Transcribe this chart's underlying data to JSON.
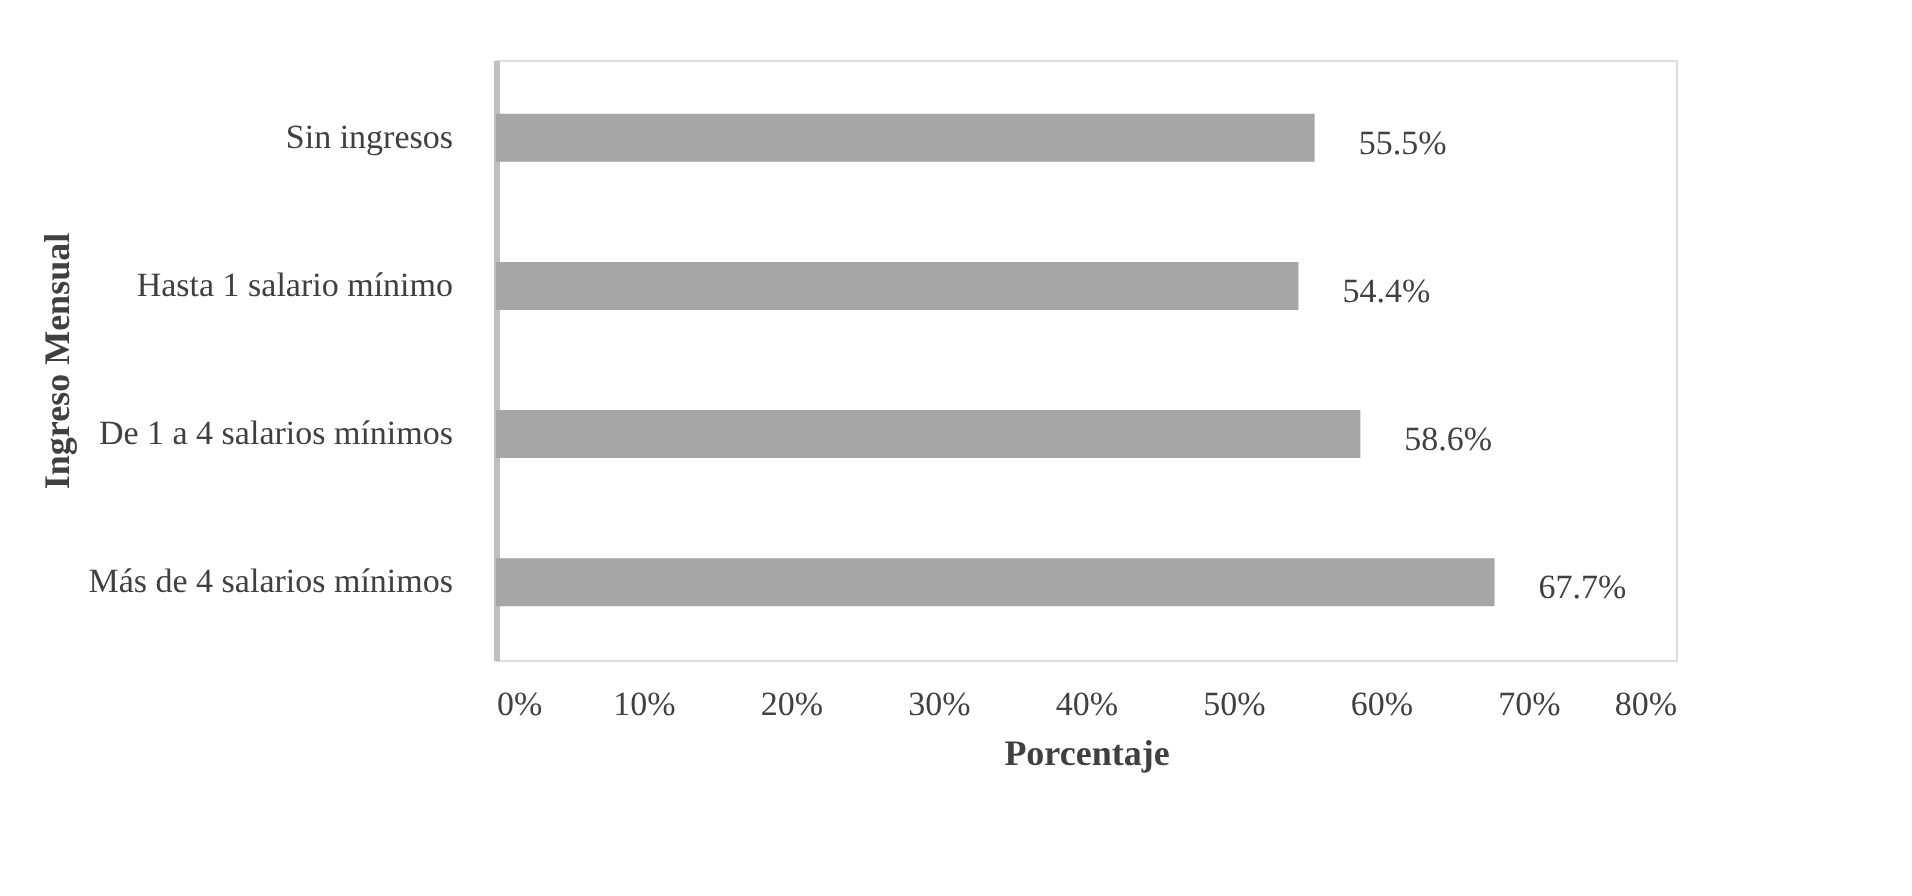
{
  "chart_data": {
    "type": "bar",
    "orientation": "horizontal",
    "xlabel": "Porcentaje",
    "ylabel": "Ingreso Mensual",
    "categories": [
      "Sin ingresos",
      "Hasta 1 salario mínimo",
      "De 1 a 4 salarios mínimos",
      "Más de 4 salarios mínimos"
    ],
    "values": [
      55.5,
      54.4,
      58.6,
      67.7
    ],
    "value_labels": [
      "55.5%",
      "54.4%",
      "58.6%",
      "67.7%"
    ],
    "color": "#a6a6a6",
    "xlim": [
      0,
      80
    ],
    "xticks": [
      {
        "value": 0,
        "label": "0%"
      },
      {
        "value": 10,
        "label": "10%"
      },
      {
        "value": 20,
        "label": "20%"
      },
      {
        "value": 30,
        "label": "30%"
      },
      {
        "value": 40,
        "label": "40%"
      },
      {
        "value": 50,
        "label": "50%"
      },
      {
        "value": 60,
        "label": "60%"
      },
      {
        "value": 70,
        "label": "70%"
      },
      {
        "value": 80,
        "label": "80%"
      }
    ],
    "grid": false
  }
}
